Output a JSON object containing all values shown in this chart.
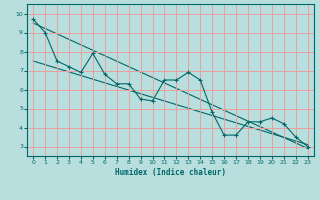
{
  "xlabel": "Humidex (Indice chaleur)",
  "ylabel": "",
  "xlim": [
    -0.5,
    23.5
  ],
  "ylim": [
    2.5,
    10.5
  ],
  "xticks": [
    0,
    1,
    2,
    3,
    4,
    5,
    6,
    7,
    8,
    9,
    10,
    11,
    12,
    13,
    14,
    15,
    16,
    17,
    18,
    19,
    20,
    21,
    22,
    23
  ],
  "yticks": [
    3,
    4,
    5,
    6,
    7,
    8,
    9,
    10
  ],
  "bg_color": "#b8dede",
  "grid_color": "#e8a0a0",
  "line_color": "#006868",
  "line1_x": [
    0,
    1,
    2,
    3,
    4,
    5,
    6,
    7,
    8,
    9,
    10,
    11,
    12,
    13,
    14,
    15,
    16,
    17,
    18,
    19,
    20,
    21,
    22,
    23
  ],
  "line1_y": [
    9.7,
    9.0,
    7.5,
    7.2,
    6.9,
    7.9,
    6.8,
    6.3,
    6.3,
    5.5,
    5.4,
    6.5,
    6.5,
    6.9,
    6.5,
    4.8,
    3.6,
    3.6,
    4.3,
    4.3,
    4.5,
    4.2,
    3.5,
    3.0
  ],
  "line2_x": [
    0,
    23
  ],
  "line2_y": [
    9.5,
    2.9
  ],
  "line3_x": [
    0,
    23
  ],
  "line3_y": [
    7.5,
    3.1
  ]
}
